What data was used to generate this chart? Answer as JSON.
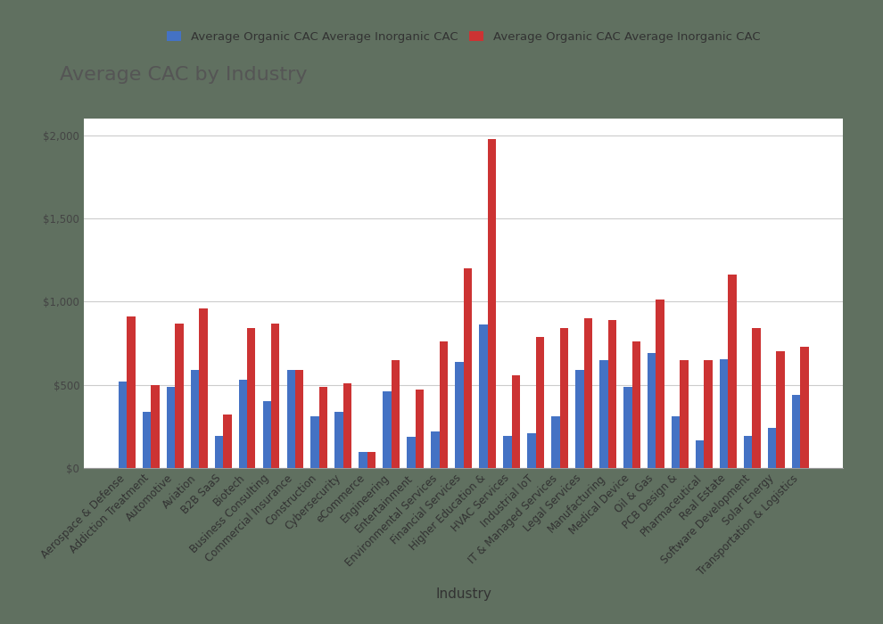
{
  "title": "Average CAC by Industry",
  "xlabel": "Industry",
  "ylabel": "",
  "legend_blue": "Average Organic CAC Average Inorganic CAC",
  "legend_red": "Average Organic CAC Average Inorganic CAC",
  "categories": [
    "Aerospace & Defense",
    "Addiction Treatment",
    "Automotive",
    "Aviation",
    "B2B SaaS",
    "Biotech",
    "Business Consulting",
    "Commercial Insurance",
    "Construction",
    "Cybersecurity",
    "eCommerce",
    "Engineering",
    "Entertainment",
    "Environmental Services",
    "Financial Services",
    "Higher Education &",
    "HVAC Services",
    "Industrial IoT",
    "IT & Managed Services",
    "Legal Services",
    "Manufacturing",
    "Medical Device",
    "Oil & Gas",
    "PCB Design &",
    "Pharmaceutical",
    "Real Estate",
    "Software Development",
    "Solar Energy",
    "Transportation & Logistics"
  ],
  "organic": [
    520,
    340,
    490,
    590,
    195,
    530,
    400,
    590,
    310,
    340,
    95,
    460,
    185,
    220,
    640,
    860,
    195,
    210,
    310,
    590,
    650,
    490,
    690,
    310,
    165,
    655,
    195,
    240,
    440
  ],
  "inorganic": [
    910,
    500,
    870,
    960,
    320,
    840,
    870,
    590,
    490,
    510,
    95,
    650,
    470,
    760,
    1200,
    1975,
    555,
    790,
    840,
    900,
    890,
    760,
    1015,
    650,
    650,
    1165,
    840,
    700,
    730
  ],
  "bar_color_blue": "#4472C4",
  "bar_color_red": "#CC3333",
  "background_color": "#FFFFFF",
  "outer_background": "#607060",
  "ylim": [
    0,
    2100
  ],
  "yticks": [
    0,
    500,
    1000,
    1500,
    2000
  ],
  "ytick_labels": [
    "$0",
    "$500",
    "$1,000",
    "$1,500",
    "$2,000"
  ],
  "title_fontsize": 16,
  "axis_label_fontsize": 11,
  "tick_fontsize": 8.5,
  "legend_fontsize": 9.5
}
